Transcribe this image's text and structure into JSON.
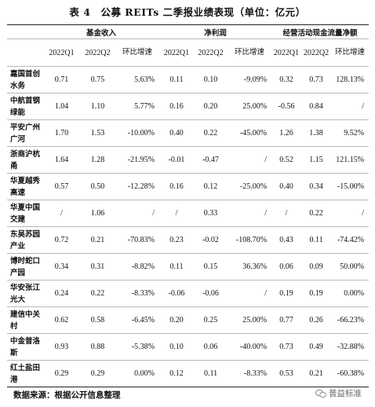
{
  "title": "表 4　公募 REITs 二季报业绩表现（单位：亿元）",
  "groups": [
    "基金收入",
    "净利润",
    "经营活动现金流量净额"
  ],
  "subheaders": [
    "2022Q1",
    "2022Q2",
    "环比增速"
  ],
  "rows": [
    {
      "name": "嘉国首创水务",
      "v": [
        "0.71",
        "0.75",
        "5.63%",
        "0.11",
        "0.10",
        "-9.09%",
        "0.32",
        "0.73",
        "128.13%"
      ]
    },
    {
      "name": "中航首钢绿能",
      "v": [
        "1.04",
        "1.10",
        "5.77%",
        "0.16",
        "0.20",
        "25.00%",
        "-0.56",
        "0.84",
        "/"
      ]
    },
    {
      "name": "平安广州广河",
      "v": [
        "1.70",
        "1.53",
        "-10.00%",
        "0.40",
        "0.22",
        "-45.00%",
        "1.26",
        "1.38",
        "9.52%"
      ]
    },
    {
      "name": "浙商沪杭甬",
      "v": [
        "1.64",
        "1.28",
        "-21.95%",
        "-0.01",
        "-0.47",
        "/",
        "0.52",
        "1.15",
        "121.15%"
      ]
    },
    {
      "name": "华夏越秀高速",
      "v": [
        "0.57",
        "0.50",
        "-12.28%",
        "0.16",
        "0.12",
        "-25.00%",
        "0.40",
        "0.34",
        "-15.00%"
      ]
    },
    {
      "name": "华夏中国交建",
      "v": [
        "/",
        "1.06",
        "/",
        "/",
        "0.33",
        "/",
        "/",
        "0.22",
        "/"
      ]
    },
    {
      "name": "东吴苏园产业",
      "v": [
        "0.72",
        "0.21",
        "-70.83%",
        "0.23",
        "-0.02",
        "-108.70%",
        "0.43",
        "0.11",
        "-74.42%"
      ]
    },
    {
      "name": "博时蛇口产园",
      "v": [
        "0.34",
        "0.31",
        "-8.82%",
        "0.11",
        "0.15",
        "36.36%",
        "0.06",
        "0.09",
        "50.00%"
      ]
    },
    {
      "name": "华安张江光大",
      "v": [
        "0.24",
        "0.22",
        "-8.33%",
        "-0.06",
        "-0.06",
        "/",
        "0.19",
        "0.19",
        "0.00%"
      ]
    },
    {
      "name": "建信中关村",
      "v": [
        "0.62",
        "0.58",
        "-6.45%",
        "0.20",
        "0.25",
        "25.00%",
        "0.77",
        "0.26",
        "-66.23%"
      ]
    },
    {
      "name": "中金普洛斯",
      "v": [
        "0.93",
        "0.88",
        "-5.38%",
        "0.10",
        "0.06",
        "-40.00%",
        "0.73",
        "0.49",
        "-32.88%"
      ]
    },
    {
      "name": "红土盐田港",
      "v": [
        "0.29",
        "0.29",
        "0.00%",
        "0.12",
        "0.11",
        "-8.33%",
        "0.53",
        "0.21",
        "-60.38%"
      ]
    }
  ],
  "source": "数据来源：根据公开信息整理",
  "watermark": "普益标准"
}
